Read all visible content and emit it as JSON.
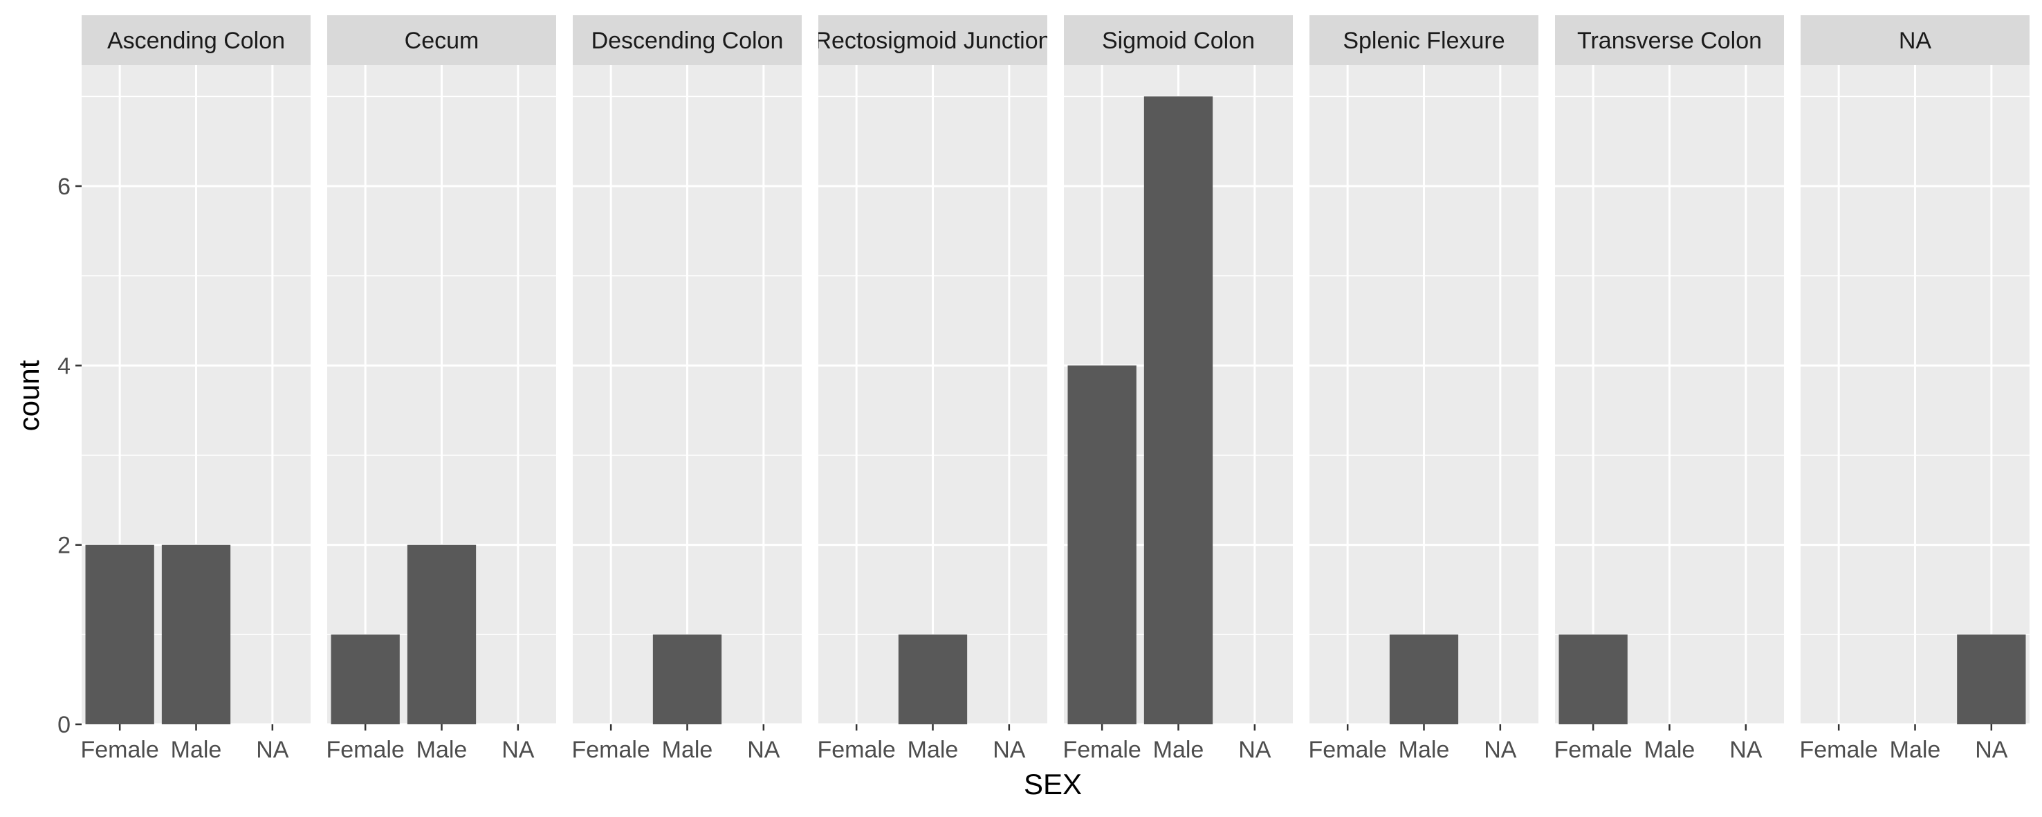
{
  "chart_data": {
    "type": "bar",
    "xlabel": "SEX",
    "ylabel": "count",
    "categories": [
      "Female",
      "Male",
      "NA"
    ],
    "ylim": [
      0,
      7.35
    ],
    "yticks": [
      0,
      2,
      4,
      6
    ],
    "grid": true,
    "colors": {
      "bar": "#595959",
      "panel": "#ebebeb",
      "strip": "#d9d9d9",
      "grid": "#ffffff"
    },
    "facets": [
      {
        "label": "Ascending Colon",
        "values": [
          2,
          2,
          0
        ]
      },
      {
        "label": "Cecum",
        "values": [
          1,
          2,
          0
        ]
      },
      {
        "label": "Descending Colon",
        "values": [
          0,
          1,
          0
        ]
      },
      {
        "label": "Rectosigmoid Junction",
        "values": [
          0,
          1,
          0
        ]
      },
      {
        "label": "Sigmoid Colon",
        "values": [
          4,
          7,
          0
        ]
      },
      {
        "label": "Splenic Flexure",
        "values": [
          0,
          1,
          0
        ]
      },
      {
        "label": "Transverse Colon",
        "values": [
          1,
          0,
          0
        ]
      },
      {
        "label": "NA",
        "values": [
          0,
          0,
          1
        ]
      }
    ]
  }
}
